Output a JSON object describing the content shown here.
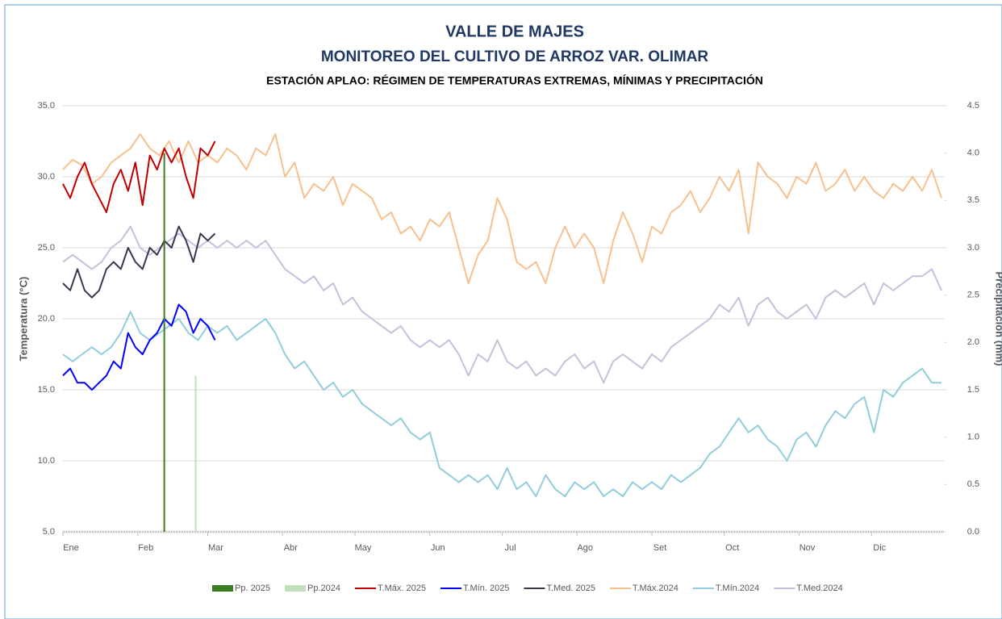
{
  "chart_data": {
    "type": "line",
    "title": "VALLE DE MAJES",
    "subtitle": "MONITOREO DEL CULTIVO DE ARROZ VAR. OLIMAR",
    "caption": "ESTACIÓN APLAO: RÉGIMEN DE TEMPERATURAS EXTREMAS, MÍNIMAS Y PRECIPITACIÓN",
    "y_label": "Temperatura (°C)",
    "y2_label": "Precipitación (mm)",
    "xlim": [
      1,
      366
    ],
    "xticks": [
      {
        "value": 1,
        "label": "Ene"
      },
      {
        "value": 32,
        "label": "Feb"
      },
      {
        "value": 61,
        "label": "Mar"
      },
      {
        "value": 92,
        "label": "Abr"
      },
      {
        "value": 122,
        "label": "May"
      },
      {
        "value": 153,
        "label": "Jun"
      },
      {
        "value": 183,
        "label": "Jul"
      },
      {
        "value": 214,
        "label": "Ago"
      },
      {
        "value": 245,
        "label": "Set"
      },
      {
        "value": 275,
        "label": "Oct"
      },
      {
        "value": 306,
        "label": "Nov"
      },
      {
        "value": 336,
        "label": "Dic"
      }
    ],
    "ylim": [
      5,
      35
    ],
    "yticks": [
      {
        "value": 5,
        "label": "5.0"
      },
      {
        "value": 10,
        "label": "10.0"
      },
      {
        "value": 15,
        "label": "15.0"
      },
      {
        "value": 20,
        "label": "20.0"
      },
      {
        "value": 25,
        "label": "25.0"
      },
      {
        "value": 30,
        "label": "30.0"
      },
      {
        "value": 35,
        "label": "35.0"
      }
    ],
    "y2lim": [
      0,
      4.5
    ],
    "y2ticks": [
      {
        "value": 0,
        "label": "0.0"
      },
      {
        "value": 0.5,
        "label": "0.5"
      },
      {
        "value": 1,
        "label": "1.0"
      },
      {
        "value": 1.5,
        "label": "1.5"
      },
      {
        "value": 2,
        "label": "2.0"
      },
      {
        "value": 2.5,
        "label": "2.5"
      },
      {
        "value": 3,
        "label": "3.0"
      },
      {
        "value": 3.5,
        "label": "3.5"
      },
      {
        "value": 4,
        "label": "4.0"
      },
      {
        "value": 4.5,
        "label": "4.5"
      }
    ],
    "grid": true,
    "legend": "bottom",
    "series": [
      {
        "name": "Pp. 2025",
        "type": "bar",
        "axis": "y2",
        "color": "#3a7d22",
        "x": [
          43
        ],
        "values": [
          4.0
        ]
      },
      {
        "name": "Pp.2024",
        "type": "bar",
        "axis": "y2",
        "color": "#c3dfc0",
        "x": [
          56
        ],
        "values": [
          1.65
        ]
      },
      {
        "name": "T.Máx. 2025",
        "type": "line",
        "color": "#c00000",
        "x": [
          1,
          4,
          7,
          10,
          13,
          16,
          19,
          22,
          25,
          28,
          31,
          34,
          37,
          40,
          43,
          46,
          49,
          52,
          55,
          58,
          61,
          64
        ],
        "values": [
          29.5,
          28.5,
          30,
          31,
          29.5,
          28.5,
          27.5,
          29.5,
          30.5,
          29,
          31,
          28,
          31.5,
          30.5,
          32,
          31,
          32,
          30,
          28.5,
          32,
          31.5,
          32.5
        ]
      },
      {
        "name": "T.Mín. 2025",
        "type": "line",
        "color": "#0000ff",
        "x": [
          1,
          4,
          7,
          10,
          13,
          16,
          19,
          22,
          25,
          28,
          31,
          34,
          37,
          40,
          43,
          46,
          49,
          52,
          55,
          58,
          61,
          64
        ],
        "values": [
          16,
          16.5,
          15.5,
          15.5,
          15,
          15.5,
          16,
          17,
          16.5,
          19,
          18,
          17.5,
          18.5,
          19,
          20,
          19.5,
          21,
          20.5,
          19,
          20,
          19.5,
          18.5
        ]
      },
      {
        "name": "T.Med. 2025",
        "type": "line",
        "color": "#3b3650",
        "x": [
          1,
          4,
          7,
          10,
          13,
          16,
          19,
          22,
          25,
          28,
          31,
          34,
          37,
          40,
          43,
          46,
          49,
          52,
          55,
          58,
          61,
          64
        ],
        "values": [
          22.5,
          22,
          23.5,
          22,
          21.5,
          22,
          23.5,
          24,
          23.5,
          25,
          24,
          23.5,
          25,
          24.5,
          25.5,
          25,
          26.5,
          25.5,
          24,
          26,
          25.5,
          26
        ]
      },
      {
        "name": "T.Máx.2024",
        "type": "line",
        "color": "#f8c08e",
        "x": [
          1,
          5,
          9,
          13,
          17,
          21,
          25,
          29,
          33,
          37,
          41,
          45,
          49,
          53,
          57,
          61,
          65,
          69,
          73,
          77,
          81,
          85,
          89,
          93,
          97,
          101,
          105,
          109,
          113,
          117,
          121,
          125,
          129,
          133,
          137,
          141,
          145,
          149,
          153,
          157,
          161,
          165,
          169,
          173,
          177,
          181,
          185,
          189,
          193,
          197,
          201,
          205,
          209,
          213,
          217,
          221,
          225,
          229,
          233,
          237,
          241,
          245,
          249,
          253,
          257,
          261,
          265,
          269,
          273,
          277,
          281,
          285,
          289,
          293,
          297,
          301,
          305,
          309,
          313,
          317,
          321,
          325,
          329,
          333,
          337,
          341,
          345,
          349,
          353,
          357,
          361,
          365
        ],
        "values": [
          30.5,
          31.2,
          30.8,
          29.5,
          30,
          31,
          31.5,
          32,
          33,
          32,
          31.5,
          32.5,
          31,
          32.5,
          31,
          31.5,
          31,
          32,
          31.5,
          30.5,
          32,
          31.5,
          33,
          30,
          31,
          28.5,
          29.5,
          29,
          30,
          28,
          29.5,
          29,
          28.5,
          27,
          27.5,
          26,
          26.5,
          25.5,
          27,
          26.5,
          27.5,
          25,
          22.5,
          24.5,
          25.5,
          28.5,
          27,
          24,
          23.5,
          24,
          22.5,
          25,
          26.5,
          25,
          26,
          25,
          22.5,
          25.5,
          27.5,
          26,
          24,
          26.5,
          26,
          27.5,
          28,
          29,
          27.5,
          28.5,
          30,
          29,
          30.5,
          26,
          31,
          30,
          29.5,
          28.5,
          30,
          29.5,
          31,
          29,
          29.5,
          30.5,
          29,
          30,
          29,
          28.5,
          29.5,
          29,
          30,
          29,
          30.5,
          28.5
        ]
      },
      {
        "name": "T.Mín.2024",
        "type": "line",
        "color": "#92cddc",
        "x": [
          1,
          5,
          9,
          13,
          17,
          21,
          25,
          29,
          33,
          37,
          41,
          45,
          49,
          53,
          57,
          61,
          65,
          69,
          73,
          77,
          81,
          85,
          89,
          93,
          97,
          101,
          105,
          109,
          113,
          117,
          121,
          125,
          129,
          133,
          137,
          141,
          145,
          149,
          153,
          157,
          161,
          165,
          169,
          173,
          177,
          181,
          185,
          189,
          193,
          197,
          201,
          205,
          209,
          213,
          217,
          221,
          225,
          229,
          233,
          237,
          241,
          245,
          249,
          253,
          257,
          261,
          265,
          269,
          273,
          277,
          281,
          285,
          289,
          293,
          297,
          301,
          305,
          309,
          313,
          317,
          321,
          325,
          329,
          333,
          337,
          341,
          345,
          349,
          353,
          357,
          361,
          365
        ],
        "values": [
          17.5,
          17,
          17.5,
          18,
          17.5,
          18,
          19,
          20.5,
          19,
          18.5,
          19,
          19.5,
          20,
          19,
          18.5,
          19.5,
          19,
          19.5,
          18.5,
          19,
          19.5,
          20,
          19,
          17.5,
          16.5,
          17,
          16,
          15,
          15.5,
          14.5,
          15,
          14,
          13.5,
          13,
          12.5,
          13,
          12,
          11.5,
          12,
          9.5,
          9,
          8.5,
          9,
          8.5,
          9,
          8,
          9.5,
          8,
          8.5,
          7.5,
          9,
          8,
          7.5,
          8.5,
          8,
          8.5,
          7.5,
          8,
          7.5,
          8.5,
          8,
          8.5,
          8,
          9,
          8.5,
          9,
          9.5,
          10.5,
          11,
          12,
          13,
          12,
          12.5,
          11.5,
          11,
          10,
          11.5,
          12,
          11,
          12.5,
          13.5,
          13,
          14,
          14.5,
          12,
          15,
          14.5,
          15.5,
          16,
          16.5,
          15.5,
          15.5
        ]
      },
      {
        "name": "T.Med.2024",
        "type": "line",
        "color": "#c9bfdd",
        "x": [
          1,
          5,
          9,
          13,
          17,
          21,
          25,
          29,
          33,
          37,
          41,
          45,
          49,
          53,
          57,
          61,
          65,
          69,
          73,
          77,
          81,
          85,
          89,
          93,
          97,
          101,
          105,
          109,
          113,
          117,
          121,
          125,
          129,
          133,
          137,
          141,
          145,
          149,
          153,
          157,
          161,
          165,
          169,
          173,
          177,
          181,
          185,
          189,
          193,
          197,
          201,
          205,
          209,
          213,
          217,
          221,
          225,
          229,
          233,
          237,
          241,
          245,
          249,
          253,
          257,
          261,
          265,
          269,
          273,
          277,
          281,
          285,
          289,
          293,
          297,
          301,
          305,
          309,
          313,
          317,
          321,
          325,
          329,
          333,
          337,
          341,
          345,
          349,
          353,
          357,
          361,
          365
        ],
        "values": [
          24,
          24.5,
          24,
          23.5,
          24,
          25,
          25.5,
          26.5,
          25,
          24.5,
          25,
          25.5,
          26,
          25.5,
          25,
          25.5,
          25,
          25.5,
          25,
          25.5,
          25,
          25.5,
          24.5,
          23.5,
          23,
          22.5,
          23,
          22,
          22.5,
          21,
          21.5,
          20.5,
          20,
          19.5,
          19,
          19.5,
          18.5,
          18,
          18.5,
          18,
          18.5,
          17.5,
          16,
          17.5,
          17,
          18.5,
          17,
          16.5,
          17,
          16,
          16.5,
          16,
          17,
          17.5,
          16.5,
          17,
          15.5,
          17,
          17.5,
          17,
          16.5,
          17.5,
          17,
          18,
          18.5,
          19,
          19.5,
          20,
          21,
          20.5,
          21.5,
          19.5,
          21,
          21.5,
          20.5,
          20,
          20.5,
          21,
          20,
          21.5,
          22,
          21.5,
          22,
          22.5,
          21,
          22.5,
          22,
          22.5,
          23,
          23,
          23.5,
          22
        ]
      }
    ]
  }
}
